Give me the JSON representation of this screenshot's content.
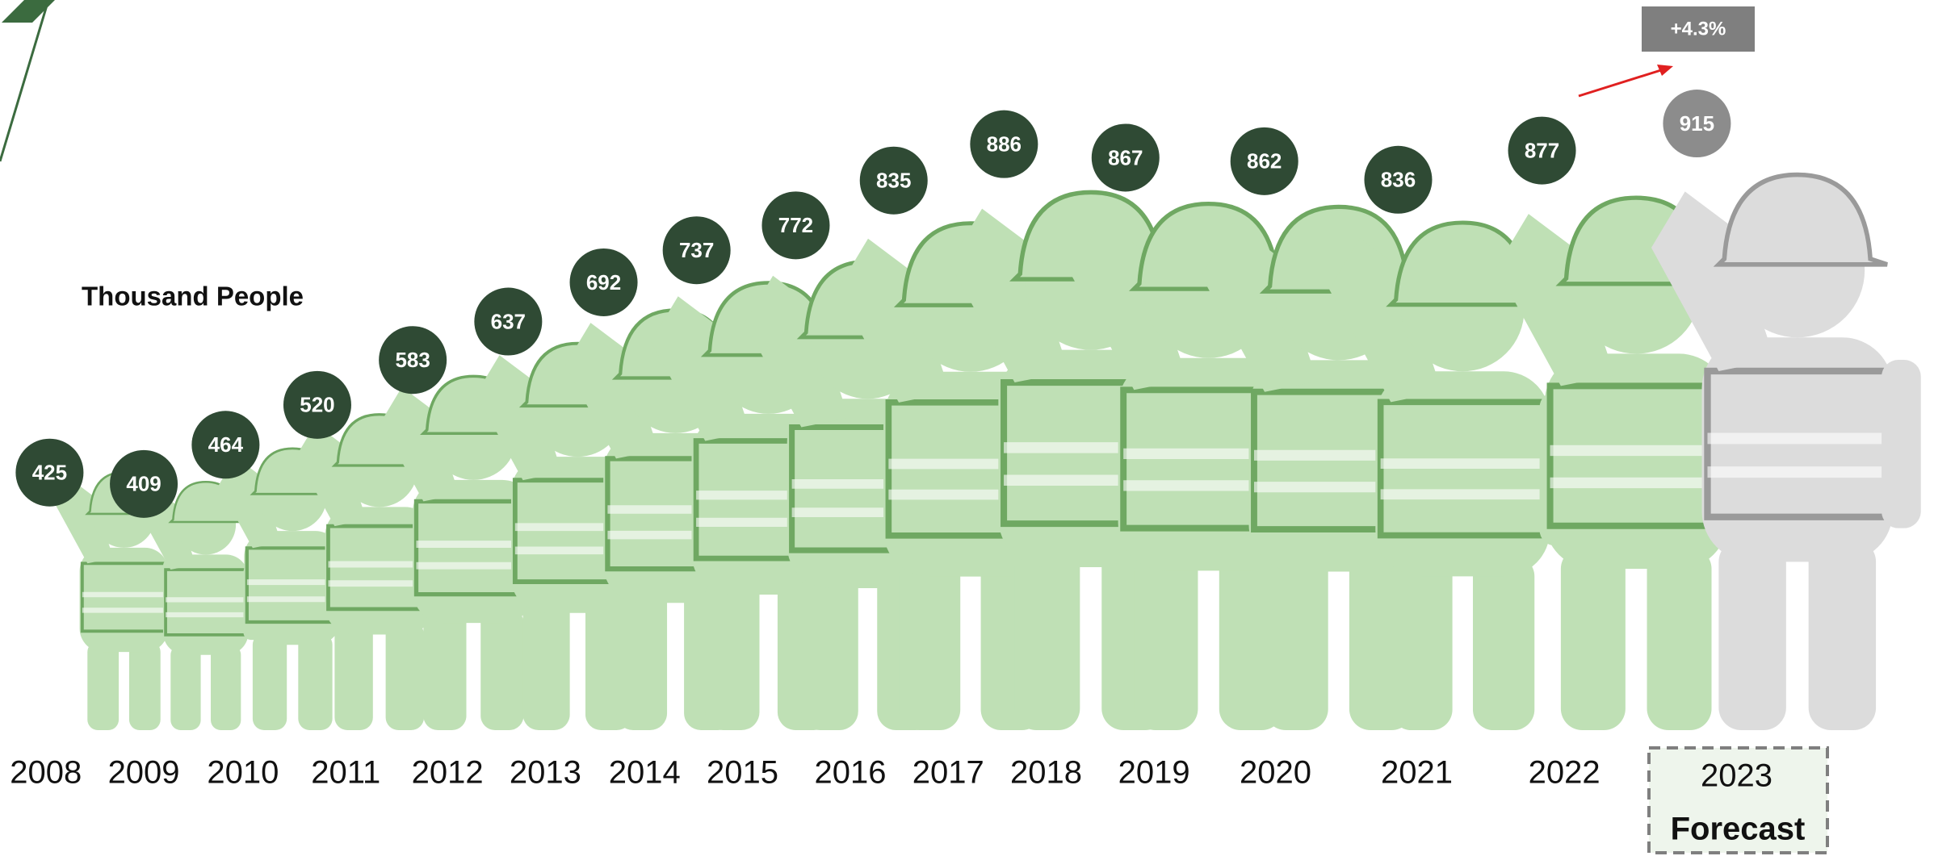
{
  "chart_data": {
    "type": "pictograph",
    "unit_label": "Thousand People",
    "categories": [
      "2008",
      "2009",
      "2010",
      "2011",
      "2012",
      "2013",
      "2014",
      "2015",
      "2016",
      "2017",
      "2018",
      "2019",
      "2020",
      "2021",
      "2022",
      "2023"
    ],
    "values": [
      425,
      409,
      464,
      520,
      583,
      637,
      692,
      737,
      772,
      835,
      886,
      867,
      862,
      836,
      877,
      915
    ],
    "point_colors": [
      "#2f4a34",
      "#2f4a34",
      "#2f4a34",
      "#2f4a34",
      "#2f4a34",
      "#2f4a34",
      "#2f4a34",
      "#2f4a34",
      "#2f4a34",
      "#2f4a34",
      "#2f4a34",
      "#2f4a34",
      "#2f4a34",
      "#2f4a34",
      "#2f4a34",
      "#8c8c8c"
    ],
    "figure_colors": [
      "#bfe0b5",
      "#bfe0b5",
      "#bfe0b5",
      "#bfe0b5",
      "#bfe0b5",
      "#bfe0b5",
      "#bfe0b5",
      "#bfe0b5",
      "#bfe0b5",
      "#bfe0b5",
      "#bfe0b5",
      "#bfe0b5",
      "#bfe0b5",
      "#bfe0b5",
      "#bfe0b5",
      "#dcdcdc"
    ],
    "forecast_label": "Forecast",
    "annotation": "+4.3%"
  }
}
